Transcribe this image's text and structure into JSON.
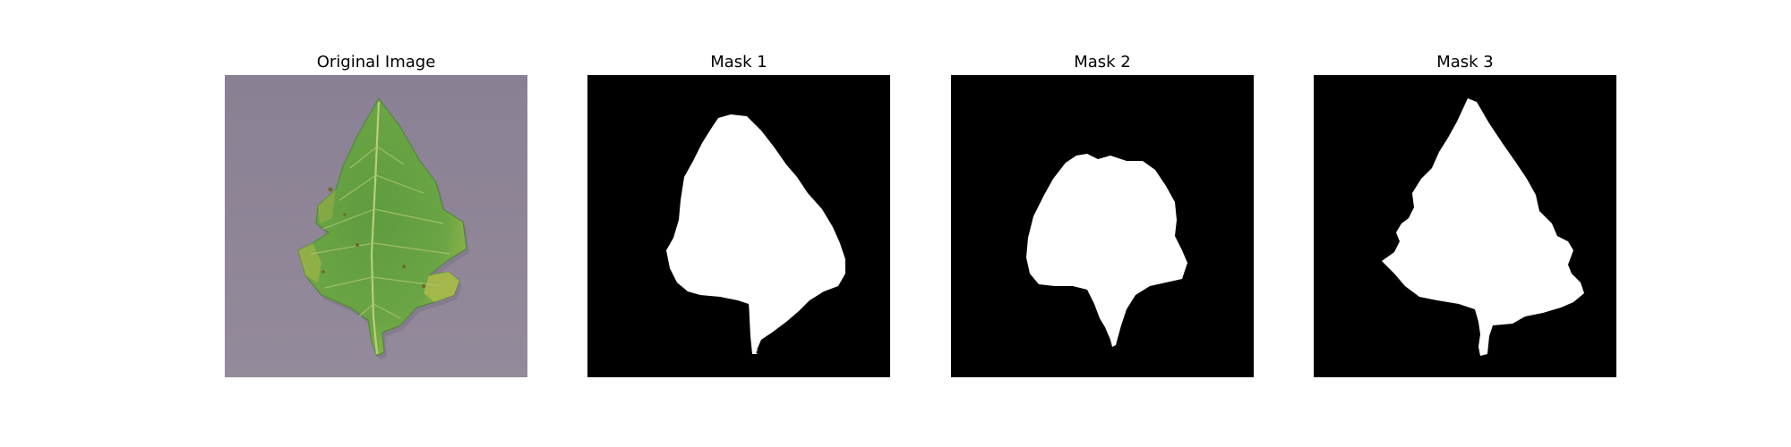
{
  "figure": {
    "panels": [
      {
        "title": "Original Image",
        "content": "leaf-photo"
      },
      {
        "title": "Mask 1",
        "content": "binary-mask"
      },
      {
        "title": "Mask 2",
        "content": "binary-mask"
      },
      {
        "title": "Mask 3",
        "content": "binary-mask"
      }
    ]
  },
  "colors": {
    "background": "#ffffff",
    "photo_backdrop": "#8e8496",
    "leaf_green": "#5c9a3e",
    "leaf_yellow": "#a9b84a",
    "mask_background": "#000000",
    "mask_foreground": "#ffffff"
  }
}
